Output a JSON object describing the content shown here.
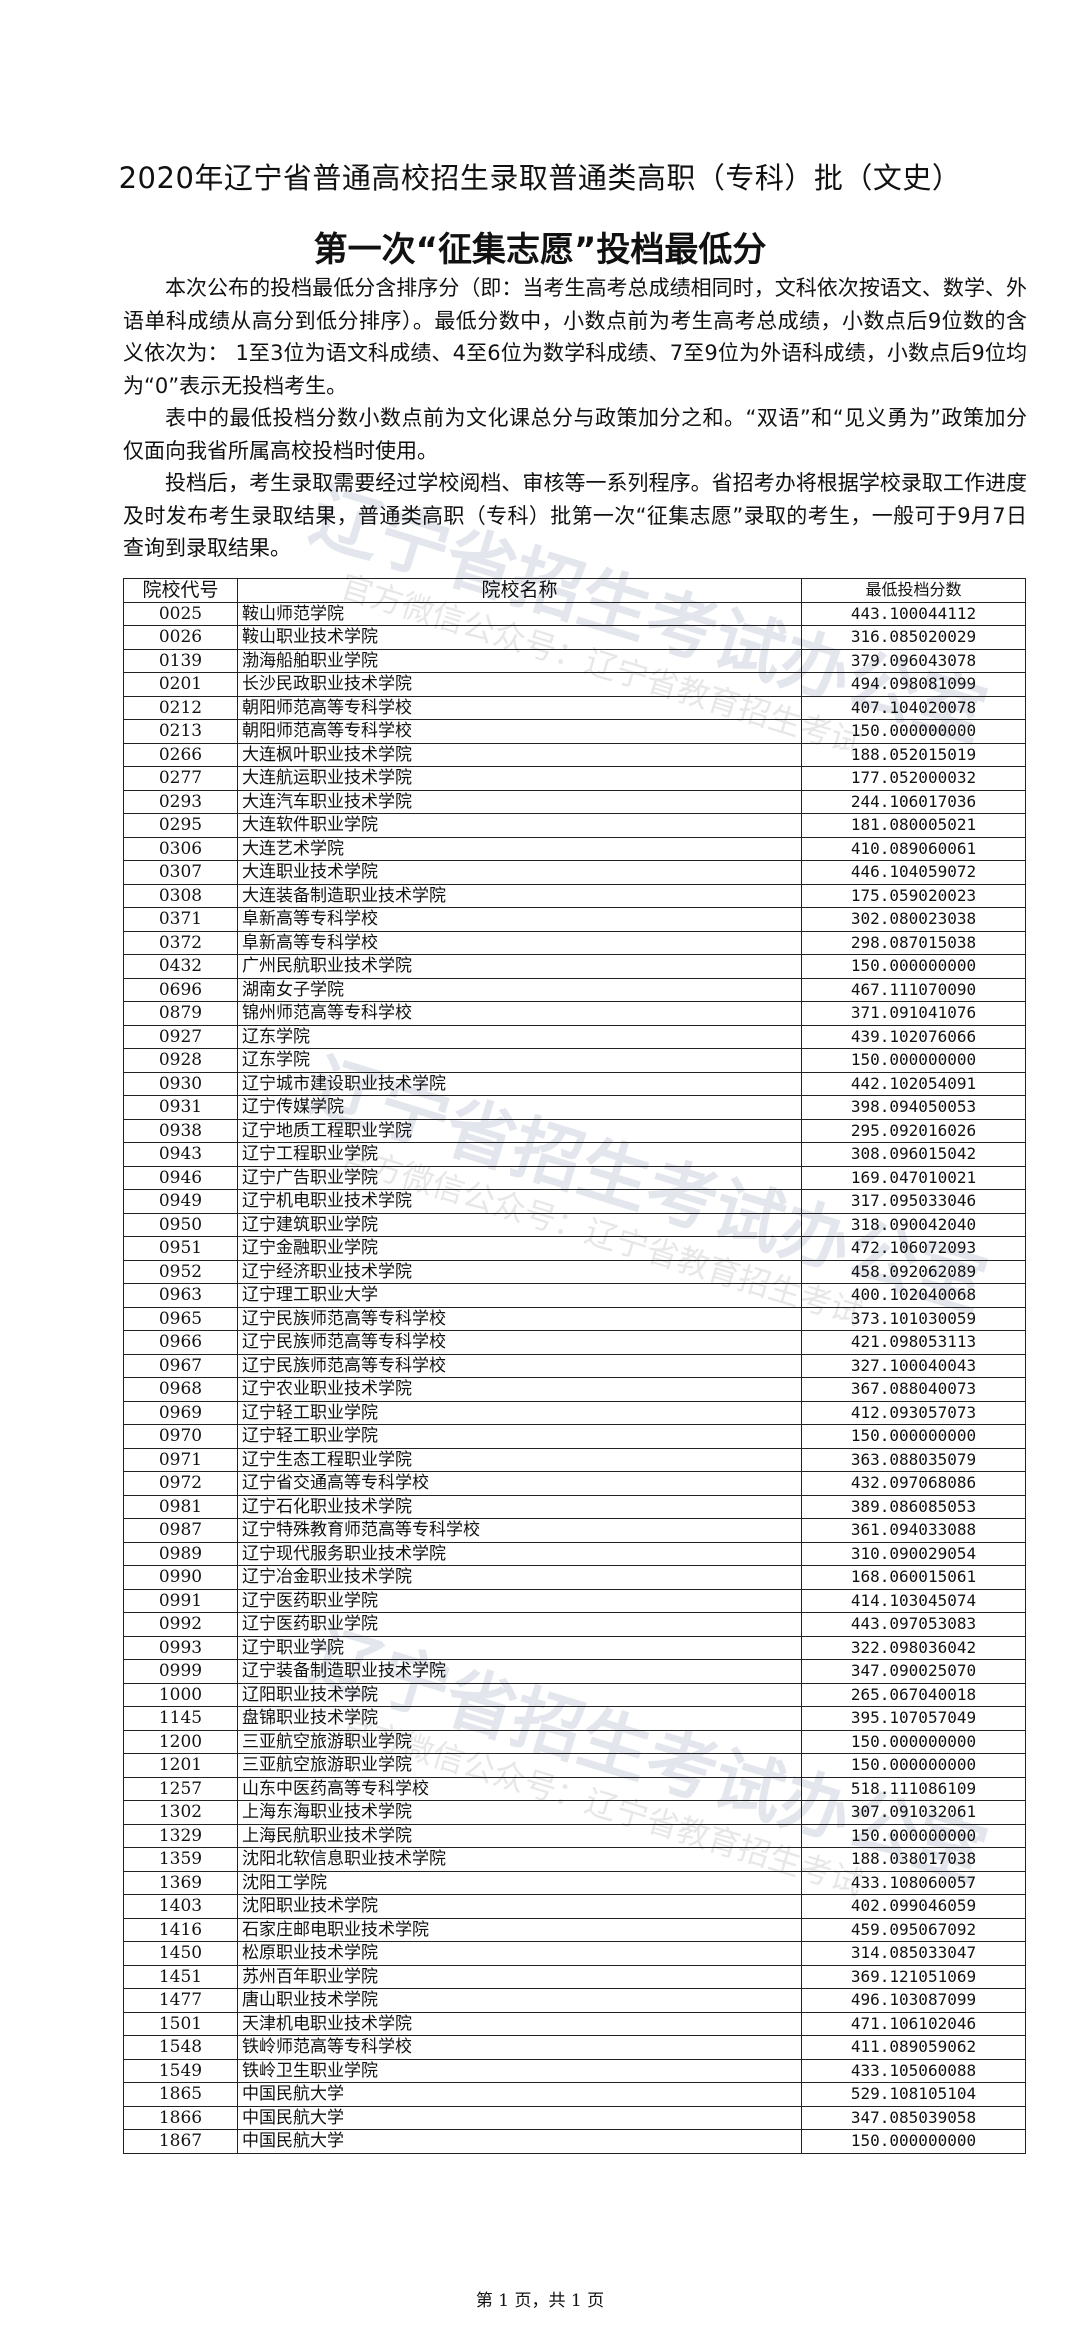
{
  "document": {
    "title": "2020年辽宁省普通高校招生录取普通类高职（专科）批（文史）",
    "subtitle": "第一次“征集志愿”投档最低分",
    "paragraphs": [
      "本次公布的投档最低分含排序分（即：当考生高考总成绩相同时，文科依次按语文、数学、外语单科成绩从高分到低分排序）。最低分数中，小数点前为考生高考总成绩，小数点后9位数的含义依次为： 1至3位为语文科成绩、4至6位为数学科成绩、7至9位为外语科成绩，小数点后9位均为“0”表示无投档考生。",
      "表中的最低投档分数小数点前为文化课总分与政策加分之和。“双语”和“见义勇为”政策加分仅面向我省所属高校投档时使用。",
      "投档后，考生录取需要经过学校阅档、审核等一系列程序。省招考办将根据学校录取工作进度及时发布考生录取结果，普通类高职（专科）批第一次“征集志愿”录取的考生，一般可于9月7日查询到录取结果。"
    ],
    "footer": "第 1 页，共 1 页"
  },
  "watermark": {
    "main": "辽宁省招生考试办公室",
    "sub": "官方微信公众号：辽宁省教育招生考试"
  },
  "table": {
    "headers": [
      "院校代号",
      "院校名称",
      "最低投档分数"
    ],
    "rows": [
      [
        "0025",
        "鞍山师范学院",
        "443.100044112"
      ],
      [
        "0026",
        "鞍山职业技术学院",
        "316.085020029"
      ],
      [
        "0139",
        "渤海船舶职业学院",
        "379.096043078"
      ],
      [
        "0201",
        "长沙民政职业技术学院",
        "494.098081099"
      ],
      [
        "0212",
        "朝阳师范高等专科学校",
        "407.104020078"
      ],
      [
        "0213",
        "朝阳师范高等专科学校",
        "150.000000000"
      ],
      [
        "0266",
        "大连枫叶职业技术学院",
        "188.052015019"
      ],
      [
        "0277",
        "大连航运职业技术学院",
        "177.052000032"
      ],
      [
        "0293",
        "大连汽车职业技术学院",
        "244.106017036"
      ],
      [
        "0295",
        "大连软件职业学院",
        "181.080005021"
      ],
      [
        "0306",
        "大连艺术学院",
        "410.089060061"
      ],
      [
        "0307",
        "大连职业技术学院",
        "446.104059072"
      ],
      [
        "0308",
        "大连装备制造职业技术学院",
        "175.059020023"
      ],
      [
        "0371",
        "阜新高等专科学校",
        "302.080023038"
      ],
      [
        "0372",
        "阜新高等专科学校",
        "298.087015038"
      ],
      [
        "0432",
        "广州民航职业技术学院",
        "150.000000000"
      ],
      [
        "0696",
        "湖南女子学院",
        "467.111070090"
      ],
      [
        "0879",
        "锦州师范高等专科学校",
        "371.091041076"
      ],
      [
        "0927",
        "辽东学院",
        "439.102076066"
      ],
      [
        "0928",
        "辽东学院",
        "150.000000000"
      ],
      [
        "0930",
        "辽宁城市建设职业技术学院",
        "442.102054091"
      ],
      [
        "0931",
        "辽宁传媒学院",
        "398.094050053"
      ],
      [
        "0938",
        "辽宁地质工程职业学院",
        "295.092016026"
      ],
      [
        "0943",
        "辽宁工程职业学院",
        "308.096015042"
      ],
      [
        "0946",
        "辽宁广告职业学院",
        "169.047010021"
      ],
      [
        "0949",
        "辽宁机电职业技术学院",
        "317.095033046"
      ],
      [
        "0950",
        "辽宁建筑职业学院",
        "318.090042040"
      ],
      [
        "0951",
        "辽宁金融职业学院",
        "472.106072093"
      ],
      [
        "0952",
        "辽宁经济职业技术学院",
        "458.092062089"
      ],
      [
        "0963",
        "辽宁理工职业大学",
        "400.102040068"
      ],
      [
        "0965",
        "辽宁民族师范高等专科学校",
        "373.101030059"
      ],
      [
        "0966",
        "辽宁民族师范高等专科学校",
        "421.098053113"
      ],
      [
        "0967",
        "辽宁民族师范高等专科学校",
        "327.100040043"
      ],
      [
        "0968",
        "辽宁农业职业技术学院",
        "367.088040073"
      ],
      [
        "0969",
        "辽宁轻工职业学院",
        "412.093057073"
      ],
      [
        "0970",
        "辽宁轻工职业学院",
        "150.000000000"
      ],
      [
        "0971",
        "辽宁生态工程职业学院",
        "363.088035079"
      ],
      [
        "0972",
        "辽宁省交通高等专科学校",
        "432.097068086"
      ],
      [
        "0981",
        "辽宁石化职业技术学院",
        "389.086085053"
      ],
      [
        "0987",
        "辽宁特殊教育师范高等专科学校",
        "361.094033088"
      ],
      [
        "0989",
        "辽宁现代服务职业技术学院",
        "310.090029054"
      ],
      [
        "0990",
        "辽宁冶金职业技术学院",
        "168.060015061"
      ],
      [
        "0991",
        "辽宁医药职业学院",
        "414.103045074"
      ],
      [
        "0992",
        "辽宁医药职业学院",
        "443.097053083"
      ],
      [
        "0993",
        "辽宁职业学院",
        "322.098036042"
      ],
      [
        "0999",
        "辽宁装备制造职业技术学院",
        "347.090025070"
      ],
      [
        "1000",
        "辽阳职业技术学院",
        "265.067040018"
      ],
      [
        "1145",
        "盘锦职业技术学院",
        "395.107057049"
      ],
      [
        "1200",
        "三亚航空旅游职业学院",
        "150.000000000"
      ],
      [
        "1201",
        "三亚航空旅游职业学院",
        "150.000000000"
      ],
      [
        "1257",
        "山东中医药高等专科学校",
        "518.111086109"
      ],
      [
        "1302",
        "上海东海职业技术学院",
        "307.091032061"
      ],
      [
        "1329",
        "上海民航职业技术学院",
        "150.000000000"
      ],
      [
        "1359",
        "沈阳北软信息职业技术学院",
        "188.038017038"
      ],
      [
        "1369",
        "沈阳工学院",
        "433.108060057"
      ],
      [
        "1403",
        "沈阳职业技术学院",
        "402.099046059"
      ],
      [
        "1416",
        "石家庄邮电职业技术学院",
        "459.095067092"
      ],
      [
        "1450",
        "松原职业技术学院",
        "314.085033047"
      ],
      [
        "1451",
        "苏州百年职业学院",
        "369.121051069"
      ],
      [
        "1477",
        "唐山职业技术学院",
        "496.103087099"
      ],
      [
        "1501",
        "天津机电职业技术学院",
        "471.106102046"
      ],
      [
        "1548",
        "铁岭师范高等专科学校",
        "411.089059062"
      ],
      [
        "1549",
        "铁岭卫生职业学院",
        "433.105060088"
      ],
      [
        "1865",
        "中国民航大学",
        "529.108105104"
      ],
      [
        "1866",
        "中国民航大学",
        "347.085039058"
      ],
      [
        "1867",
        "中国民航大学",
        "150.000000000"
      ]
    ]
  }
}
